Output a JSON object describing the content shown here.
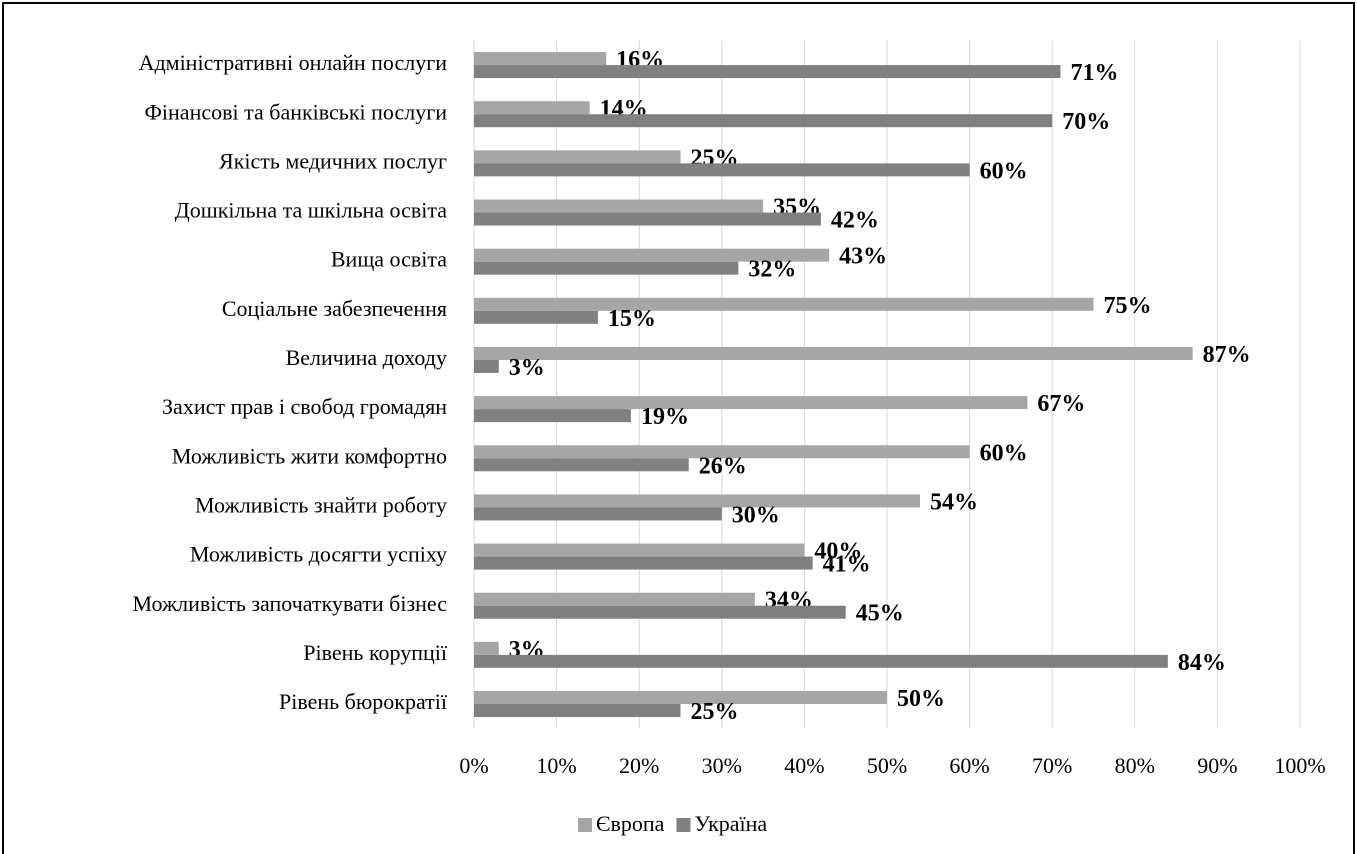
{
  "chart_data": {
    "type": "bar",
    "orientation": "horizontal",
    "categories": [
      "Адміністративні онлайн послуги",
      "Фінансові та банківські послуги",
      "Якість медичних послуг",
      "Дошкільна та шкільна освіта",
      "Вища освіта",
      "Соціальне забезпечення",
      "Величина доходу",
      "Захист прав і свобод громадян",
      "Можливість жити комфортно",
      "Можливість знайти роботу",
      "Можливість досягти успіху",
      "Можливість започаткувати бізнес",
      "Рівень корупції",
      "Рівень бюрократії"
    ],
    "series": [
      {
        "name": "Європа",
        "color": "#a6a6a6",
        "values": [
          16,
          14,
          25,
          35,
          43,
          75,
          87,
          67,
          60,
          54,
          40,
          34,
          3,
          50
        ],
        "value_labels": [
          "16%",
          "14%",
          "25%",
          "35%",
          "43%",
          "75%",
          "87%",
          "67%",
          "60%",
          "54%",
          "40%",
          "34%",
          "3%",
          "50%"
        ]
      },
      {
        "name": "Україна",
        "color": "#808080",
        "values": [
          71,
          70,
          60,
          42,
          32,
          15,
          3,
          19,
          26,
          30,
          41,
          45,
          84,
          25
        ],
        "value_labels": [
          "71%",
          "70%",
          "60%",
          "42%",
          "32%",
          "15%",
          "3%",
          "19%",
          "26%",
          "30%",
          "41%",
          "45%",
          "84%",
          "25%"
        ]
      }
    ],
    "xlim": [
      0,
      100
    ],
    "xticks": [
      {
        "value": 0,
        "label": "0%"
      },
      {
        "value": 10,
        "label": "10%"
      },
      {
        "value": 20,
        "label": "20%"
      },
      {
        "value": 30,
        "label": "30%"
      },
      {
        "value": 40,
        "label": "40%"
      },
      {
        "value": 50,
        "label": "50%"
      },
      {
        "value": 60,
        "label": "60%"
      },
      {
        "value": 70,
        "label": "70%"
      },
      {
        "value": 80,
        "label": "80%"
      },
      {
        "value": 90,
        "label": "90%"
      },
      {
        "value": 100,
        "label": "100%"
      }
    ],
    "grid": true,
    "legend": "bottom"
  }
}
